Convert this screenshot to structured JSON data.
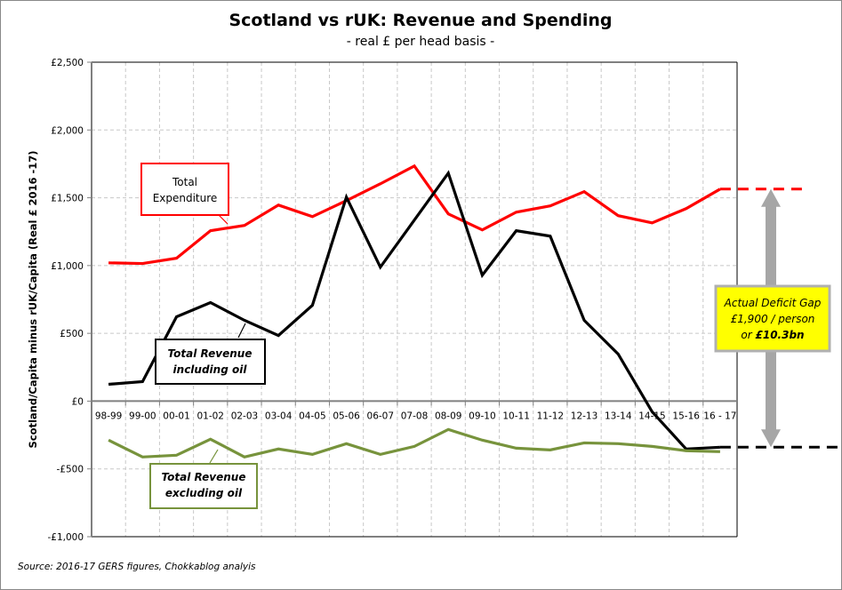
{
  "chart_data": {
    "type": "line",
    "title": "Scotland vs rUK: Revenue and Spending",
    "subtitle": "- real £ per head basis -",
    "ylabel": "Scotland/Capita minus rUK/Capita (Real £ 2016 -17)",
    "xlabel": "",
    "ylim": [
      -1000,
      2500
    ],
    "yticks": [
      2500,
      2000,
      1500,
      1000,
      500,
      0,
      -500,
      -1000
    ],
    "ytick_labels": [
      "£2,500",
      "£2,000",
      "£1,500",
      "£1,000",
      "£500",
      "£0",
      "-£500",
      "-£1,000"
    ],
    "grid": true,
    "categories": [
      "98-99",
      "99-00",
      "00-01",
      "01-02",
      "02-03",
      "03-04",
      "04-05",
      "05-06",
      "06-07",
      "07-08",
      "08-09",
      "09-10",
      "10-11",
      "11-12",
      "12-13",
      "13-14",
      "14-15",
      "15-16",
      "16 - 17"
    ],
    "series": [
      {
        "name": "Total Expenditure",
        "color": "#ff0000",
        "values": [
          1020,
          1015,
          1054,
          1257,
          1296,
          1446,
          1361,
          1479,
          1603,
          1734,
          1381,
          1263,
          1394,
          1440,
          1545,
          1368,
          1315,
          1420,
          1564
        ]
      },
      {
        "name": "Total Revenue including oil",
        "color": "#000000",
        "values": [
          124,
          144,
          622,
          727,
          596,
          484,
          707,
          1505,
          988,
          1335,
          1682,
          929,
          1257,
          1217,
          596,
          347,
          -79,
          -353,
          -340
        ]
      },
      {
        "name": "Total Revenue excluding oil",
        "color": "#77933c",
        "values": [
          -288,
          -412,
          -399,
          -281,
          -412,
          -353,
          -393,
          -314,
          -393,
          -334,
          -209,
          -288,
          -347,
          -360,
          -308,
          -314,
          -334,
          -366,
          -373
        ]
      }
    ],
    "labels": {
      "expenditure": [
        "Total",
        "Expenditure"
      ],
      "revenue_incl": [
        "Total Revenue",
        "including oil"
      ],
      "revenue_excl": [
        "Total Revenue",
        "excluding oil"
      ]
    },
    "annotation": {
      "lines": [
        "Actual Deficit Gap",
        "£1,900 / person",
        "or "
      ],
      "bold": "£10.3bn",
      "box_color": "#ffff00",
      "arrow_color": "#a6a6a6"
    },
    "source": "Source:  2016-17 GERS figures, Chokkablog analyis"
  }
}
